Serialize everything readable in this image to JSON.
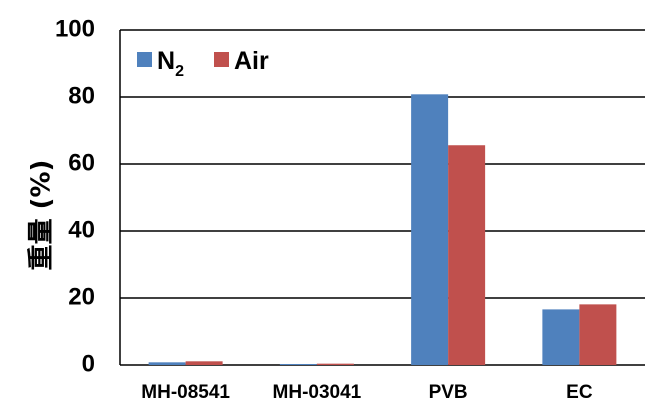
{
  "chart_data": {
    "type": "bar",
    "categories": [
      "MH-08541",
      "MH-03041",
      "PVB",
      "EC"
    ],
    "series": [
      {
        "name": "N2",
        "legend_main": "N",
        "legend_sub": "2",
        "color": "#4F81BD",
        "values": [
          0.8,
          0.3,
          80.8,
          16.6
        ]
      },
      {
        "name": "Air",
        "legend_main": "Air",
        "color": "#C0504D",
        "values": [
          1.1,
          0.4,
          65.6,
          18.1
        ]
      }
    ],
    "ylabel": "重量 (%)",
    "ylim": [
      0,
      100
    ],
    "yticks": [
      "0",
      "20",
      "40",
      "60",
      "80",
      "100"
    ],
    "grid": true,
    "legend_position": "top-left"
  }
}
